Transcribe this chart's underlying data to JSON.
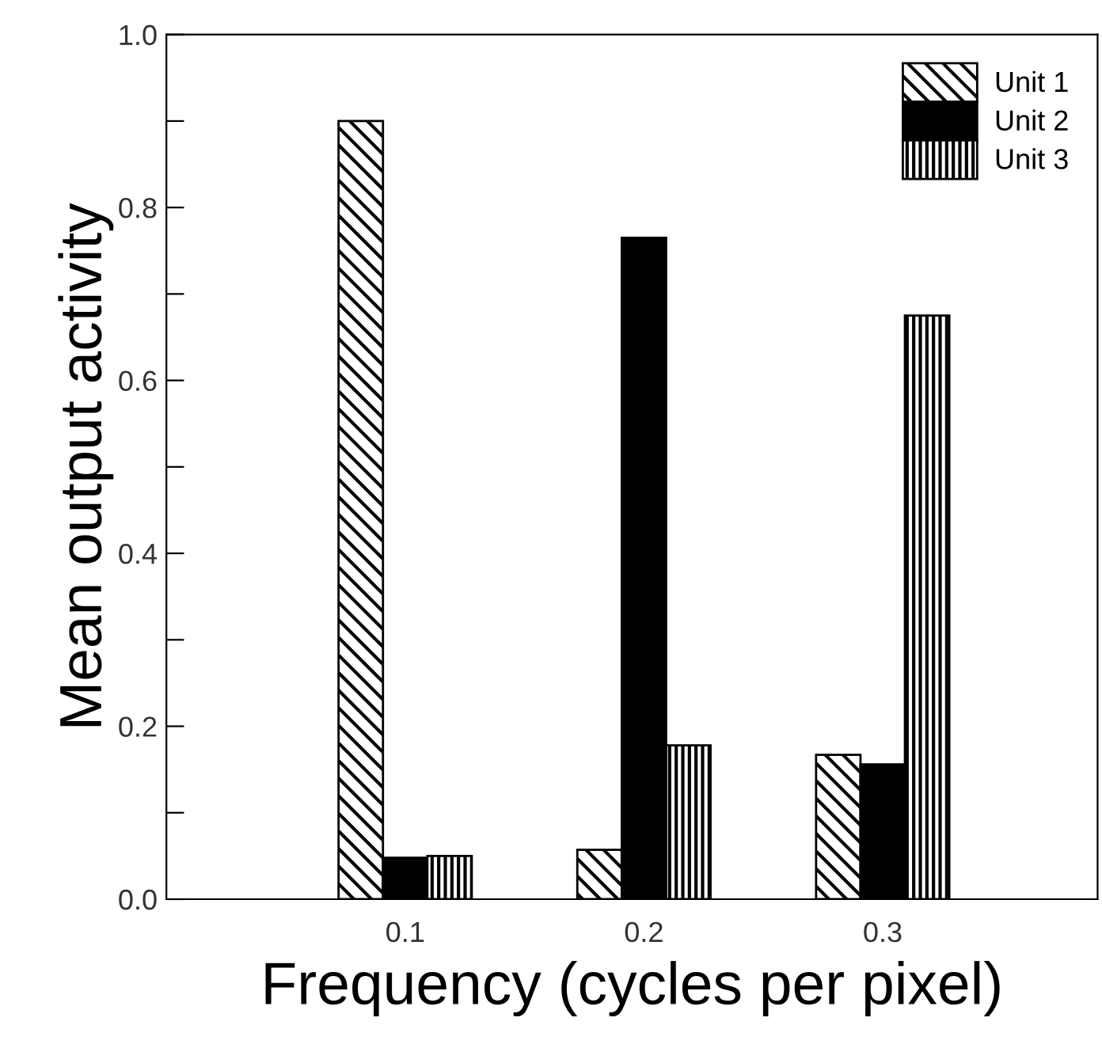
{
  "chart_data": {
    "type": "bar",
    "xlabel": "Frequency (cycles per pixel)",
    "ylabel": "Mean output activity",
    "x": [
      0.1,
      0.2,
      0.3
    ],
    "series": [
      {
        "name": "Unit 1",
        "color": "#000000",
        "values": [
          0.9,
          0.057,
          0.167
        ]
      },
      {
        "name": "Unit 2",
        "color": "#000000",
        "values": [
          0.048,
          0.765,
          0.156
        ]
      },
      {
        "name": "Unit 3",
        "color": "#000000",
        "values": [
          0.05,
          0.178,
          0.675
        ]
      }
    ],
    "xlim": [
      0,
      0.39
    ],
    "xticks": [
      0.1,
      0.2,
      0.3
    ],
    "ylim": [
      0,
      1.0
    ],
    "yticks": [
      {
        "value": 0,
        "label": "0.0"
      },
      {
        "value": 0.1,
        "label": null
      },
      0.2,
      {
        "value": 0.3,
        "label": null
      },
      0.4,
      {
        "value": 0.5,
        "label": null
      },
      0.6,
      {
        "value": 0.7,
        "label": null
      },
      0.8,
      {
        "value": 0.9,
        "label": null
      },
      {
        "value": 1,
        "label": "1.0"
      }
    ],
    "grid": false,
    "legend": "top right"
  }
}
